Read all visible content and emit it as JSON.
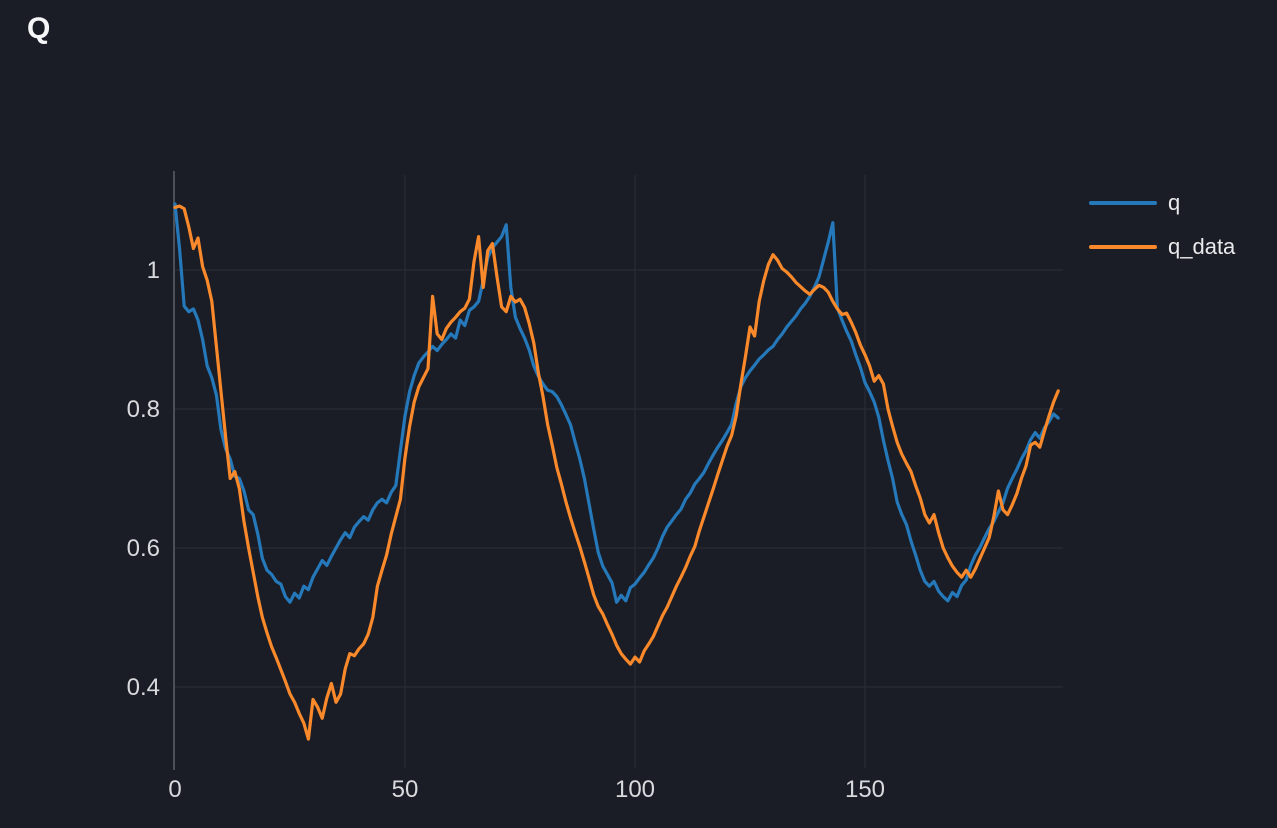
{
  "title": "Q",
  "colors": {
    "background": "#1a1d25",
    "grid": "#262a33",
    "axis": "#4b4f58",
    "tick_text": "#d8dade",
    "title_text": "#f5f6f8",
    "legend_text": "#e9eaec",
    "series_blue": "#2579ba",
    "series_orange": "#f9892b"
  },
  "legend": {
    "items": [
      {
        "label": "q",
        "color": "#2579ba"
      },
      {
        "label": "q_data",
        "color": "#f9892b"
      }
    ]
  },
  "chart_data": {
    "type": "line",
    "title": "Q",
    "xlabel": "",
    "ylabel": "",
    "grid": true,
    "legend_position": "right-top",
    "x_start": 0,
    "x_step": 1,
    "xlim": [
      0,
      193
    ],
    "ylim": [
      0.28,
      1.11
    ],
    "x_ticks": [
      0,
      50,
      100,
      150
    ],
    "x_tick_labels": [
      "0",
      "50",
      "100",
      "150"
    ],
    "y_ticks": [
      0.4,
      0.6,
      0.8,
      1
    ],
    "y_tick_labels": [
      "0.4",
      "0.6",
      "0.8",
      "1"
    ],
    "series": [
      {
        "name": "q",
        "color": "#2579ba",
        "values": [
          1.095,
          1.03,
          0.948,
          0.94,
          0.944,
          0.928,
          0.9,
          0.862,
          0.845,
          0.82,
          0.77,
          0.743,
          0.728,
          0.703,
          0.7,
          0.682,
          0.655,
          0.648,
          0.62,
          0.585,
          0.568,
          0.562,
          0.552,
          0.548,
          0.53,
          0.522,
          0.535,
          0.528,
          0.545,
          0.54,
          0.558,
          0.57,
          0.582,
          0.575,
          0.588,
          0.6,
          0.612,
          0.622,
          0.615,
          0.63,
          0.638,
          0.645,
          0.64,
          0.655,
          0.665,
          0.67,
          0.665,
          0.68,
          0.69,
          0.74,
          0.79,
          0.825,
          0.848,
          0.866,
          0.875,
          0.882,
          0.89,
          0.884,
          0.893,
          0.9,
          0.908,
          0.902,
          0.928,
          0.92,
          0.942,
          0.947,
          0.955,
          0.985,
          1.018,
          1.032,
          1.04,
          1.048,
          1.065,
          0.975,
          0.932,
          0.916,
          0.902,
          0.885,
          0.862,
          0.847,
          0.836,
          0.827,
          0.825,
          0.818,
          0.806,
          0.792,
          0.777,
          0.752,
          0.728,
          0.7,
          0.664,
          0.628,
          0.594,
          0.574,
          0.562,
          0.55,
          0.522,
          0.532,
          0.524,
          0.543,
          0.548,
          0.557,
          0.565,
          0.576,
          0.586,
          0.6,
          0.617,
          0.63,
          0.639,
          0.648,
          0.656,
          0.67,
          0.679,
          0.692,
          0.7,
          0.709,
          0.722,
          0.734,
          0.745,
          0.755,
          0.766,
          0.778,
          0.808,
          0.832,
          0.845,
          0.855,
          0.863,
          0.872,
          0.878,
          0.885,
          0.89,
          0.9,
          0.908,
          0.918,
          0.926,
          0.934,
          0.944,
          0.952,
          0.962,
          0.975,
          0.99,
          1.015,
          1.04,
          1.068,
          0.945,
          0.928,
          0.912,
          0.898,
          0.878,
          0.86,
          0.838,
          0.825,
          0.81,
          0.788,
          0.755,
          0.726,
          0.7,
          0.666,
          0.648,
          0.634,
          0.61,
          0.59,
          0.568,
          0.552,
          0.545,
          0.552,
          0.538,
          0.53,
          0.524,
          0.536,
          0.53,
          0.546,
          0.554,
          0.575,
          0.59,
          0.601,
          0.615,
          0.628,
          0.638,
          0.652,
          0.665,
          0.686,
          0.7,
          0.713,
          0.728,
          0.74,
          0.756,
          0.766,
          0.758,
          0.773,
          0.782,
          0.793,
          0.787
        ]
      },
      {
        "name": "q_data",
        "color": "#f9892b",
        "values": [
          1.09,
          1.092,
          1.088,
          1.062,
          1.031,
          1.046,
          1.005,
          0.985,
          0.955,
          0.89,
          0.825,
          0.76,
          0.7,
          0.71,
          0.685,
          0.638,
          0.6,
          0.565,
          0.53,
          0.5,
          0.478,
          0.458,
          0.442,
          0.425,
          0.408,
          0.39,
          0.378,
          0.362,
          0.348,
          0.325,
          0.382,
          0.371,
          0.355,
          0.384,
          0.405,
          0.378,
          0.39,
          0.426,
          0.448,
          0.445,
          0.455,
          0.462,
          0.476,
          0.5,
          0.545,
          0.568,
          0.59,
          0.62,
          0.645,
          0.67,
          0.73,
          0.775,
          0.81,
          0.832,
          0.845,
          0.858,
          0.962,
          0.908,
          0.9,
          0.916,
          0.925,
          0.932,
          0.94,
          0.945,
          0.958,
          1.012,
          1.048,
          0.975,
          1.028,
          1.038,
          0.99,
          0.947,
          0.94,
          0.962,
          0.954,
          0.958,
          0.946,
          0.923,
          0.895,
          0.852,
          0.818,
          0.778,
          0.748,
          0.716,
          0.692,
          0.666,
          0.643,
          0.622,
          0.602,
          0.58,
          0.557,
          0.533,
          0.516,
          0.505,
          0.49,
          0.476,
          0.46,
          0.448,
          0.44,
          0.433,
          0.443,
          0.436,
          0.452,
          0.462,
          0.473,
          0.488,
          0.503,
          0.515,
          0.53,
          0.545,
          0.558,
          0.572,
          0.588,
          0.602,
          0.625,
          0.645,
          0.665,
          0.685,
          0.706,
          0.726,
          0.746,
          0.762,
          0.79,
          0.835,
          0.875,
          0.918,
          0.905,
          0.955,
          0.985,
          1.008,
          1.022,
          1.014,
          1.002,
          0.997,
          0.99,
          0.982,
          0.976,
          0.97,
          0.965,
          0.972,
          0.978,
          0.975,
          0.968,
          0.955,
          0.944,
          0.936,
          0.938,
          0.925,
          0.91,
          0.892,
          0.878,
          0.862,
          0.84,
          0.848,
          0.836,
          0.8,
          0.775,
          0.752,
          0.735,
          0.722,
          0.71,
          0.69,
          0.672,
          0.648,
          0.636,
          0.648,
          0.622,
          0.6,
          0.586,
          0.574,
          0.565,
          0.558,
          0.568,
          0.558,
          0.57,
          0.585,
          0.6,
          0.615,
          0.645,
          0.682,
          0.655,
          0.648,
          0.662,
          0.678,
          0.7,
          0.718,
          0.748,
          0.752,
          0.745,
          0.768,
          0.79,
          0.81,
          0.826
        ]
      }
    ]
  }
}
